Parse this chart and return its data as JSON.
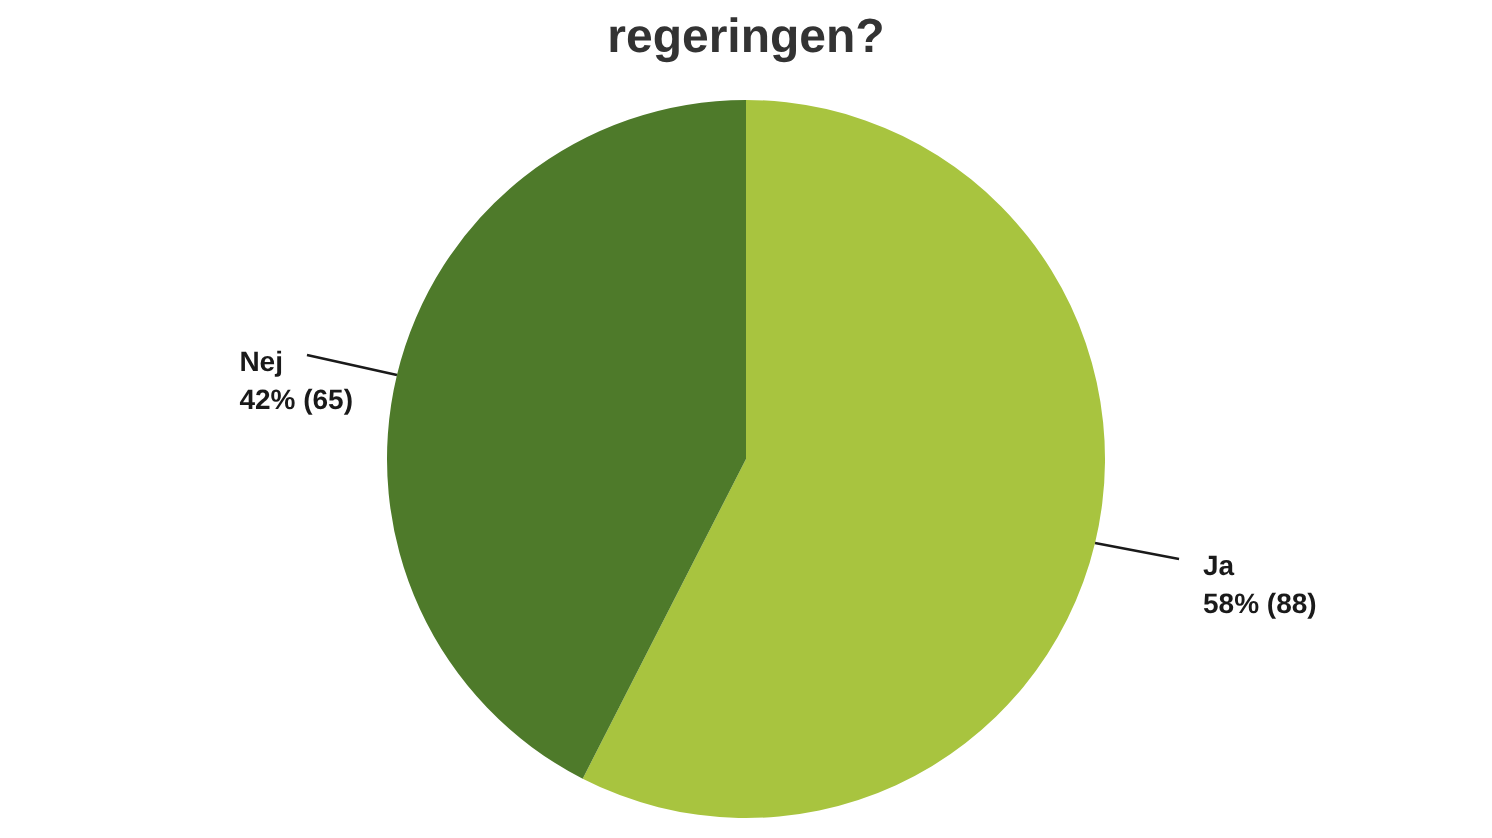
{
  "chart_data": {
    "type": "pie",
    "title": "regeringen?",
    "categories": [
      "Ja",
      "Nej"
    ],
    "values": [
      88,
      65
    ],
    "colors": [
      "#a8c43f",
      "#4e7a2a"
    ],
    "value_labels": [
      "58% (88)",
      "42% (65)"
    ]
  }
}
